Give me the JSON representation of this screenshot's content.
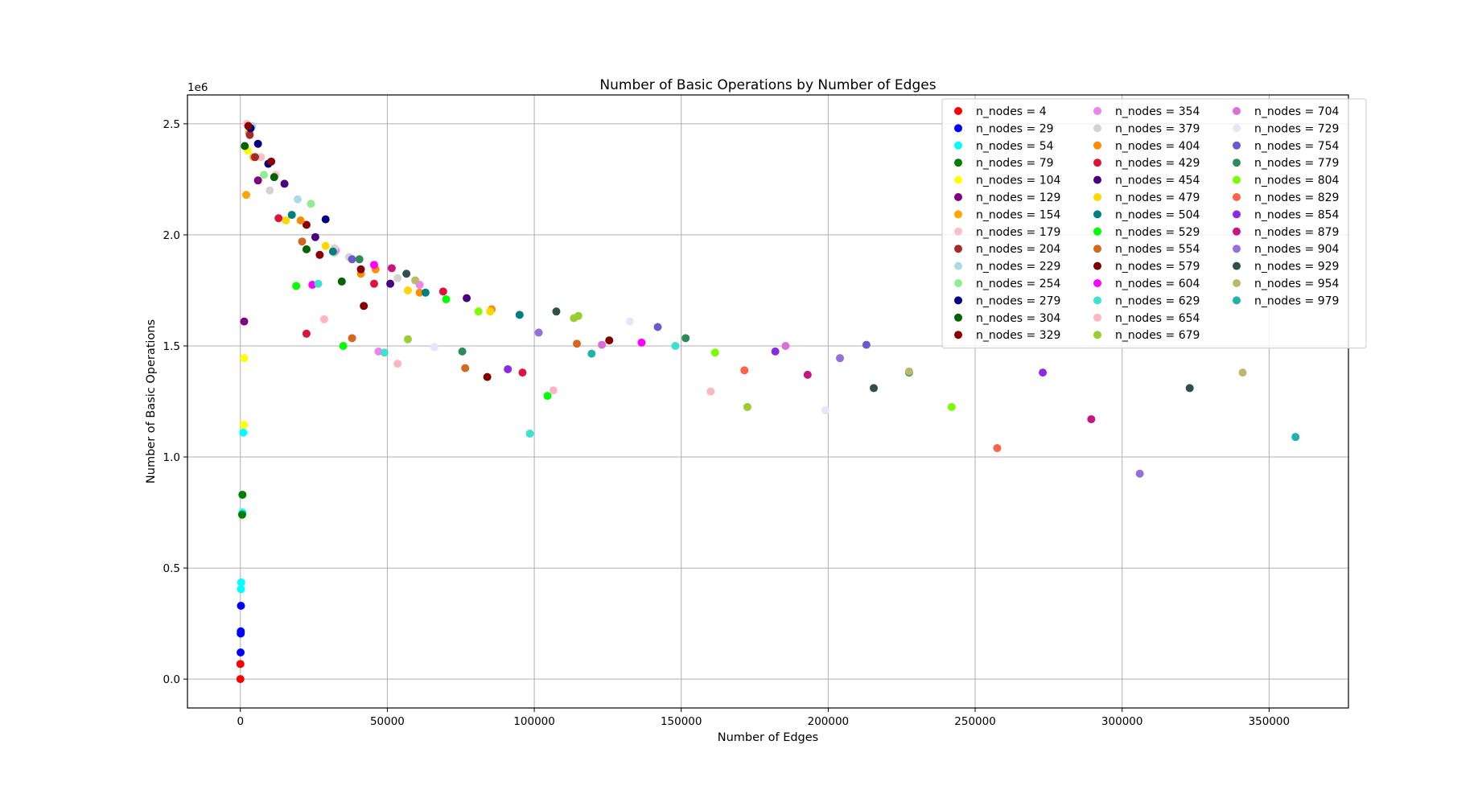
{
  "chart_data": {
    "type": "scatter",
    "title": "Number of Basic Operations by Number of Edges",
    "xlabel": "Number of Edges",
    "ylabel": "Number of Basic Operations",
    "y_offset_label": "1e6",
    "xlim": [
      -18000,
      377000
    ],
    "ylim": [
      -0.13,
      2.63
    ],
    "x_ticks": [
      0,
      50000,
      100000,
      150000,
      200000,
      250000,
      300000,
      350000
    ],
    "x_tick_labels": [
      "0",
      "50000",
      "100000",
      "150000",
      "200000",
      "250000",
      "300000",
      "350000"
    ],
    "y_ticks": [
      0.0,
      0.5,
      1.0,
      1.5,
      2.0,
      2.5
    ],
    "y_tick_labels": [
      "0.0",
      "0.5",
      "1.0",
      "1.5",
      "2.0",
      "2.5"
    ],
    "grid": true,
    "legend_position": "top-right",
    "legend_columns": 3,
    "series": [
      {
        "name": "n_nodes = 4",
        "color": "#ff0000",
        "points": [
          [
            3,
            0.0
          ],
          [
            6,
            0.068
          ]
        ]
      },
      {
        "name": "n_nodes = 29",
        "color": "#0000ff",
        "points": [
          [
            80,
            0.12
          ],
          [
            120,
            0.205
          ],
          [
            150,
            0.215
          ],
          [
            200,
            0.33
          ]
        ]
      },
      {
        "name": "n_nodes = 54",
        "color": "#00ffff",
        "points": [
          [
            200,
            0.405
          ],
          [
            300,
            0.435
          ],
          [
            700,
            0.75
          ],
          [
            1000,
            1.11
          ]
        ]
      },
      {
        "name": "n_nodes = 79",
        "color": "#008000",
        "points": [
          [
            600,
            0.74
          ],
          [
            700,
            0.83
          ]
        ]
      },
      {
        "name": "n_nodes = 104",
        "color": "#ffff00",
        "points": [
          [
            1200,
            1.145
          ],
          [
            1300,
            1.445
          ],
          [
            2500,
            2.38
          ]
        ]
      },
      {
        "name": "n_nodes = 129",
        "color": "#800080",
        "points": [
          [
            1300,
            1.61
          ],
          [
            6000,
            2.245
          ]
        ]
      },
      {
        "name": "n_nodes = 154",
        "color": "#ffa500",
        "points": [
          [
            2000,
            2.18
          ],
          [
            3000,
            2.46
          ],
          [
            4500,
            2.35
          ]
        ]
      },
      {
        "name": "n_nodes = 179",
        "color": "#ffc0cb",
        "points": [
          [
            2200,
            2.5
          ],
          [
            7000,
            2.35
          ],
          [
            12000,
            2.27
          ]
        ]
      },
      {
        "name": "n_nodes = 204",
        "color": "#a52a2a",
        "points": [
          [
            3200,
            2.45
          ],
          [
            5000,
            2.35
          ]
        ]
      },
      {
        "name": "n_nodes = 229",
        "color": "#add8e6",
        "points": [
          [
            4000,
            2.49
          ],
          [
            19500,
            2.16
          ]
        ]
      },
      {
        "name": "n_nodes = 254",
        "color": "#90ee90",
        "points": [
          [
            8000,
            2.27
          ],
          [
            24000,
            2.14
          ],
          [
            32000,
            1.92
          ]
        ]
      },
      {
        "name": "n_nodes = 279",
        "color": "#000080",
        "points": [
          [
            3500,
            2.48
          ],
          [
            6000,
            2.41
          ],
          [
            9500,
            2.32
          ],
          [
            29000,
            2.07
          ]
        ]
      },
      {
        "name": "n_nodes = 304",
        "color": "#006400",
        "points": [
          [
            1500,
            2.4
          ],
          [
            11500,
            2.26
          ],
          [
            22500,
            1.935
          ],
          [
            34500,
            1.79
          ]
        ]
      },
      {
        "name": "n_nodes = 329",
        "color": "#8b0000",
        "points": [
          [
            2700,
            2.49
          ],
          [
            10500,
            2.33
          ],
          [
            22500,
            2.045
          ],
          [
            27000,
            1.91
          ],
          [
            42000,
            1.68
          ]
        ]
      },
      {
        "name": "n_nodes = 354",
        "color": "#ee82ee",
        "points": [
          [
            32500,
            1.93
          ],
          [
            47000,
            1.475
          ],
          [
            61000,
            1.775
          ]
        ]
      },
      {
        "name": "n_nodes = 379",
        "color": "#d3d3d3",
        "points": [
          [
            10000,
            2.2
          ],
          [
            32000,
            1.94
          ],
          [
            37000,
            1.9
          ],
          [
            53500,
            1.805
          ]
        ]
      },
      {
        "name": "n_nodes = 404",
        "color": "#ff8c00",
        "points": [
          [
            20500,
            2.065
          ],
          [
            41000,
            1.825
          ],
          [
            46000,
            1.845
          ],
          [
            61000,
            1.74
          ],
          [
            85500,
            1.665
          ]
        ]
      },
      {
        "name": "n_nodes = 429",
        "color": "#dc143c",
        "points": [
          [
            13000,
            2.075
          ],
          [
            22500,
            1.555
          ],
          [
            45500,
            1.78
          ],
          [
            69000,
            1.745
          ],
          [
            96000,
            1.38
          ]
        ]
      },
      {
        "name": "n_nodes = 454",
        "color": "#4b0082",
        "points": [
          [
            15000,
            2.23
          ],
          [
            25500,
            1.99
          ],
          [
            51000,
            1.78
          ],
          [
            77000,
            1.715
          ]
        ]
      },
      {
        "name": "n_nodes = 479",
        "color": "#ffd700",
        "points": [
          [
            15500,
            2.065
          ],
          [
            29000,
            1.95
          ],
          [
            57000,
            1.75
          ],
          [
            85000,
            1.655
          ]
        ]
      },
      {
        "name": "n_nodes = 504",
        "color": "#008080",
        "points": [
          [
            17500,
            2.09
          ],
          [
            31500,
            1.925
          ],
          [
            63000,
            1.74
          ],
          [
            95000,
            1.64
          ]
        ]
      },
      {
        "name": "n_nodes = 529",
        "color": "#00ff00",
        "points": [
          [
            19000,
            1.77
          ],
          [
            35000,
            1.5
          ],
          [
            70000,
            1.71
          ],
          [
            104500,
            1.275
          ]
        ]
      },
      {
        "name": "n_nodes = 554",
        "color": "#d2691e",
        "points": [
          [
            21000,
            1.97
          ],
          [
            38000,
            1.535
          ],
          [
            76500,
            1.4
          ],
          [
            114500,
            1.51
          ]
        ]
      },
      {
        "name": "n_nodes = 579",
        "color": "#800000",
        "points": [
          [
            41000,
            1.845
          ],
          [
            84000,
            1.36
          ],
          [
            125500,
            1.525
          ]
        ]
      },
      {
        "name": "n_nodes = 604",
        "color": "#ff00ff",
        "points": [
          [
            24500,
            1.775
          ],
          [
            45500,
            1.865
          ],
          [
            136500,
            1.515
          ]
        ]
      },
      {
        "name": "n_nodes = 629",
        "color": "#40e0d0",
        "points": [
          [
            26500,
            1.78
          ],
          [
            49000,
            1.47
          ],
          [
            98500,
            1.105
          ],
          [
            148000,
            1.5
          ]
        ]
      },
      {
        "name": "n_nodes = 654",
        "color": "#ffb6c1",
        "points": [
          [
            28500,
            1.62
          ],
          [
            53500,
            1.42
          ],
          [
            106500,
            1.3
          ],
          [
            160000,
            1.295
          ]
        ]
      },
      {
        "name": "n_nodes = 679",
        "color": "#9acd32",
        "points": [
          [
            57000,
            1.53
          ],
          [
            113500,
            1.625
          ],
          [
            115000,
            1.635
          ],
          [
            172500,
            1.225
          ]
        ]
      },
      {
        "name": "n_nodes = 704",
        "color": "#da70d6",
        "points": [
          [
            123000,
            1.505
          ],
          [
            185500,
            1.5
          ]
        ]
      },
      {
        "name": "n_nodes = 729",
        "color": "#e6e6fa",
        "points": [
          [
            66000,
            1.495
          ],
          [
            132500,
            1.61
          ],
          [
            199000,
            1.21
          ]
        ]
      },
      {
        "name": "n_nodes = 754",
        "color": "#6a5acd",
        "points": [
          [
            38000,
            1.89
          ],
          [
            142000,
            1.585
          ],
          [
            213000,
            1.505
          ]
        ]
      },
      {
        "name": "n_nodes = 779",
        "color": "#2e8b57",
        "points": [
          [
            40500,
            1.89
          ],
          [
            75500,
            1.475
          ],
          [
            151500,
            1.535
          ],
          [
            227500,
            1.38
          ]
        ]
      },
      {
        "name": "n_nodes = 804",
        "color": "#7cfc00",
        "points": [
          [
            81000,
            1.655
          ],
          [
            161500,
            1.47
          ],
          [
            242000,
            1.225
          ]
        ]
      },
      {
        "name": "n_nodes = 829",
        "color": "#ff6347",
        "points": [
          [
            171500,
            1.39
          ],
          [
            257500,
            1.04
          ]
        ]
      },
      {
        "name": "n_nodes = 854",
        "color": "#8a2be2",
        "points": [
          [
            91000,
            1.395
          ],
          [
            182000,
            1.475
          ],
          [
            273000,
            1.38
          ]
        ]
      },
      {
        "name": "n_nodes = 879",
        "color": "#c71585",
        "points": [
          [
            51500,
            1.85
          ],
          [
            193000,
            1.37
          ],
          [
            289500,
            1.17
          ]
        ]
      },
      {
        "name": "n_nodes = 904",
        "color": "#9370db",
        "points": [
          [
            101500,
            1.56
          ],
          [
            204000,
            1.445
          ],
          [
            306000,
            0.925
          ]
        ]
      },
      {
        "name": "n_nodes = 929",
        "color": "#2f4f4f",
        "points": [
          [
            56500,
            1.825
          ],
          [
            107500,
            1.655
          ],
          [
            215500,
            1.31
          ],
          [
            323000,
            1.31
          ]
        ]
      },
      {
        "name": "n_nodes = 954",
        "color": "#bdb76b",
        "points": [
          [
            59500,
            1.795
          ],
          [
            227500,
            1.385
          ],
          [
            341000,
            1.38
          ]
        ]
      },
      {
        "name": "n_nodes = 979",
        "color": "#20b2aa",
        "points": [
          [
            119500,
            1.465
          ],
          [
            359000,
            1.09
          ]
        ]
      }
    ]
  }
}
